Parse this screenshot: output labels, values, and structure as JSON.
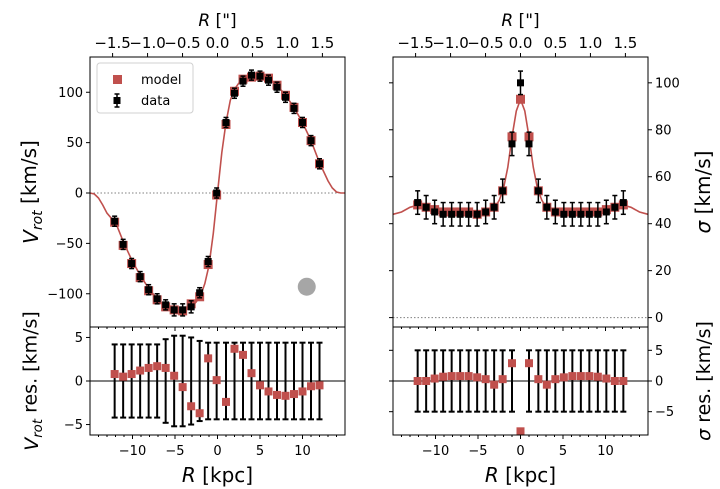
{
  "colors": {
    "model": "#c0504d",
    "data": "#000000",
    "zero_line": "#808080",
    "beam": "#a6a6a6"
  },
  "chart_data": [
    {
      "id": "vrot",
      "type": "scatter",
      "xlim": [
        -15,
        15
      ],
      "ylim": [
        -133,
        135
      ],
      "ylabel": "V_rot [km/s]",
      "top_xlabel": "R [\"]",
      "top_xlim_arcsec": [
        -1.823,
        1.823
      ],
      "top_xticks": [
        "−1.5",
        "−1.0",
        "−0.5",
        "0.0",
        "0.5",
        "1.0",
        "1.5"
      ],
      "top_xtick_values": [
        -1.5,
        -1.0,
        -0.5,
        0.0,
        0.5,
        1.0,
        1.5
      ],
      "yticks": [
        -100,
        -50,
        0,
        50,
        100
      ],
      "ytick_side": "left",
      "legend": {
        "position": "top-left",
        "entries": [
          "model",
          "data"
        ]
      },
      "zero_line": true,
      "beam": {
        "shape": "circle",
        "x": 10.5,
        "y": -93
      },
      "x": [
        -12.1,
        -11.1,
        -10.1,
        -9.1,
        -8.1,
        -7.1,
        -6.1,
        -5.1,
        -4.1,
        -3.1,
        -2.1,
        -1.1,
        -0.1,
        1.0,
        2.0,
        3.0,
        4.0,
        5.0,
        6.0,
        7.0,
        8.0,
        9.0,
        10.0,
        11.0,
        12.0
      ],
      "data_values": [
        -28,
        -51,
        -70,
        -83,
        -96,
        -105,
        -111,
        -116,
        -116,
        -113,
        -99,
        -68,
        0,
        70,
        99,
        111,
        117,
        116,
        112,
        105,
        95,
        84,
        70,
        52,
        29
      ],
      "data_err": [
        5,
        5,
        5,
        5,
        5,
        5,
        5,
        6,
        6,
        6,
        5,
        5,
        5,
        5,
        5,
        5,
        5,
        5,
        5,
        5,
        5,
        5,
        5,
        5,
        5
      ],
      "model_values": [
        -29,
        -52,
        -70,
        -84,
        -97,
        -106,
        -113,
        -116,
        -117,
        -110,
        -103,
        -71,
        -2,
        68,
        101,
        113,
        115,
        116,
        114,
        107,
        97,
        85,
        70,
        52,
        29
      ],
      "model_curve": {
        "x": [
          -15,
          -14.5,
          -14,
          -13.5,
          -13,
          -12.5,
          -12,
          -11,
          -10,
          -9,
          -8,
          -7,
          -6,
          -5,
          -4,
          -3,
          -2.5,
          -2,
          -1.5,
          -1,
          -0.5,
          0,
          0.5,
          1,
          1.5,
          2,
          2.5,
          3,
          4,
          5,
          6,
          7,
          8,
          9,
          10,
          11,
          12,
          12.5,
          13,
          13.5,
          14,
          14.5,
          15
        ],
        "y": [
          0,
          -1,
          -5,
          -12,
          -20,
          -25,
          -29,
          -50,
          -68,
          -83,
          -96,
          -106,
          -113,
          -116,
          -117,
          -113,
          -108,
          -102,
          -90,
          -72,
          -40,
          0,
          40,
          70,
          92,
          103,
          109,
          112,
          116,
          116,
          113,
          107,
          97,
          85,
          70,
          52,
          30,
          21,
          12,
          5,
          1,
          0,
          0
        ]
      }
    },
    {
      "id": "vrot_res",
      "type": "scatter",
      "xlabel": "R [kpc]",
      "xlim": [
        -15,
        15
      ],
      "xticks": [
        -10,
        -5,
        0,
        5,
        10
      ],
      "ylim": [
        -6.2,
        6.2
      ],
      "ylabel": "V_rot res. [km/s]",
      "yticks": [
        -5,
        0,
        5
      ],
      "ytick_side": "left",
      "zero_line": true,
      "x": [
        -12.1,
        -11.1,
        -10.1,
        -9.1,
        -8.1,
        -7.1,
        -6.1,
        -5.1,
        -4.1,
        -3.1,
        -2.1,
        -1.1,
        -0.1,
        1.0,
        2.0,
        3.0,
        4.0,
        5.0,
        6.0,
        7.0,
        8.0,
        9.0,
        10.0,
        11.0,
        12.0
      ],
      "values": [
        0.8,
        0.5,
        0.8,
        1.2,
        1.5,
        1.7,
        1.5,
        0.6,
        -0.7,
        -2.9,
        -3.7,
        2.6,
        0.1,
        -2.4,
        3.7,
        3.0,
        0.9,
        -0.5,
        -1.2,
        -1.6,
        -1.7,
        -1.5,
        -1.2,
        -0.6,
        -0.5
      ],
      "errors": [
        4.2,
        4.2,
        4.2,
        4.2,
        4.2,
        4.2,
        4.8,
        5.2,
        5.2,
        5.0,
        4.6,
        4.4,
        4.4,
        4.4,
        4.4,
        4.4,
        4.4,
        4.4,
        4.4,
        4.4,
        4.4,
        4.4,
        4.4,
        4.4,
        4.4
      ]
    },
    {
      "id": "sigma",
      "type": "scatter",
      "xlim": [
        -15,
        15
      ],
      "ylim": [
        -4,
        111
      ],
      "ylabel": "σ [km/s]",
      "top_xlabel": "R [\"]",
      "top_xlim_arcsec": [
        -1.823,
        1.823
      ],
      "top_xticks": [
        "−1.5",
        "−1.0",
        "−0.5",
        "0.0",
        "0.5",
        "1.0",
        "1.5"
      ],
      "top_xtick_values": [
        -1.5,
        -1.0,
        -0.5,
        0.0,
        0.5,
        1.0,
        1.5
      ],
      "yticks": [
        0,
        20,
        40,
        60,
        80,
        100
      ],
      "ytick_side": "right",
      "zero_line": true,
      "x": [
        -12.1,
        -11.1,
        -10.1,
        -9.1,
        -8.1,
        -7.1,
        -6.1,
        -5.1,
        -4.1,
        -3.1,
        -2.1,
        -1.0,
        0.0,
        1.0,
        2.1,
        3.1,
        4.1,
        5.1,
        6.1,
        7.1,
        8.1,
        9.1,
        10.1,
        11.1,
        12.1
      ],
      "data_values": [
        49,
        47,
        45,
        44,
        44,
        44,
        44,
        44,
        45,
        47,
        54,
        74,
        100,
        74,
        54,
        47,
        45,
        44,
        44,
        44,
        44,
        44,
        45,
        47,
        49
      ],
      "data_err": [
        5,
        5,
        5,
        5,
        5,
        5,
        5,
        5,
        5,
        5,
        5,
        5,
        5,
        5,
        5,
        5,
        5,
        5,
        5,
        5,
        5,
        5,
        5,
        5,
        5
      ],
      "model_values": [
        48,
        47,
        46,
        45,
        45,
        45,
        45,
        44,
        45,
        47,
        54,
        77,
        93,
        77,
        54,
        47,
        45,
        45,
        45,
        45,
        45,
        45,
        46,
        47,
        48
      ],
      "model_curve": {
        "x": [
          -15,
          -14,
          -13,
          -12,
          -11,
          -10,
          -9,
          -8,
          -7,
          -6,
          -5,
          -4,
          -3,
          -2.5,
          -2,
          -1.5,
          -1,
          -0.5,
          0,
          0.5,
          1,
          1.5,
          2,
          2.5,
          3,
          4,
          5,
          6,
          7,
          8,
          9,
          10,
          11,
          12,
          13,
          14,
          15
        ],
        "y": [
          44,
          45,
          47,
          48,
          47,
          46,
          45,
          45,
          45,
          45,
          44,
          45,
          47,
          50,
          55,
          64,
          77,
          88,
          93,
          88,
          77,
          64,
          55,
          50,
          47,
          45,
          44,
          45,
          45,
          45,
          45,
          46,
          47,
          48,
          47,
          45,
          44
        ]
      }
    },
    {
      "id": "sigma_res",
      "type": "scatter",
      "xlabel": "R [kpc]",
      "xlim": [
        -15,
        15
      ],
      "xticks": [
        -10,
        -5,
        0,
        5,
        10
      ],
      "ylim": [
        -8.8,
        8.8
      ],
      "ylabel": "σ res. [km/s]",
      "yticks": [
        -5,
        0,
        5
      ],
      "ytick_side": "right",
      "zero_line": true,
      "x": [
        -12.1,
        -11.1,
        -10.1,
        -9.1,
        -8.1,
        -7.1,
        -6.1,
        -5.1,
        -4.1,
        -3.1,
        -2.1,
        -1.0,
        0.0,
        1.0,
        2.1,
        3.1,
        4.1,
        5.1,
        6.1,
        7.1,
        8.1,
        9.1,
        10.1,
        11.1,
        12.1
      ],
      "values": [
        0,
        0,
        0.4,
        0.7,
        0.8,
        0.8,
        0.8,
        0.6,
        0.3,
        -0.6,
        0.3,
        2.9,
        -8.2,
        2.9,
        0.3,
        -0.6,
        0.3,
        0.6,
        0.8,
        0.8,
        0.8,
        0.7,
        0.4,
        0,
        0
      ],
      "errors": [
        5,
        5,
        5,
        5,
        5,
        5,
        5,
        5,
        5,
        5,
        5,
        5,
        0,
        5,
        5,
        5,
        5,
        5,
        5,
        5,
        5,
        5,
        5,
        5,
        5
      ]
    }
  ]
}
